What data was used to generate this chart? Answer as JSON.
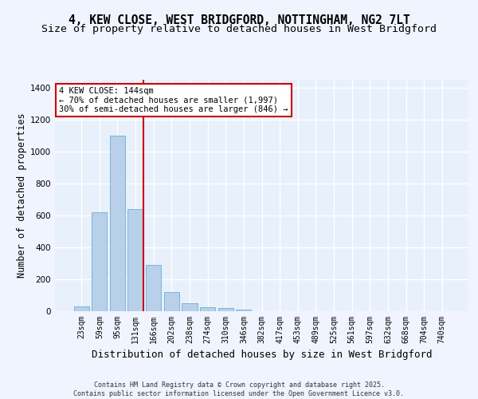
{
  "title_line1": "4, KEW CLOSE, WEST BRIDGFORD, NOTTINGHAM, NG2 7LT",
  "title_line2": "Size of property relative to detached houses in West Bridgford",
  "xlabel": "Distribution of detached houses by size in West Bridgford",
  "ylabel": "Number of detached properties",
  "categories": [
    "23sqm",
    "59sqm",
    "95sqm",
    "131sqm",
    "166sqm",
    "202sqm",
    "238sqm",
    "274sqm",
    "310sqm",
    "346sqm",
    "382sqm",
    "417sqm",
    "453sqm",
    "489sqm",
    "525sqm",
    "561sqm",
    "597sqm",
    "632sqm",
    "668sqm",
    "704sqm",
    "740sqm"
  ],
  "values": [
    30,
    620,
    1100,
    640,
    290,
    120,
    50,
    25,
    20,
    10,
    0,
    0,
    0,
    0,
    0,
    0,
    0,
    0,
    0,
    0,
    0
  ],
  "bar_color": "#b8d0ea",
  "bar_edge_color": "#6aaed6",
  "vline_color": "#cc0000",
  "vline_x": 3.43,
  "annotation_text": "4 KEW CLOSE: 144sqm\n← 70% of detached houses are smaller (1,997)\n30% of semi-detached houses are larger (846) →",
  "annotation_box_color": "#cc0000",
  "ylim": [
    0,
    1450
  ],
  "yticks": [
    0,
    200,
    400,
    600,
    800,
    1000,
    1200,
    1400
  ],
  "bg_color": "#e8f0fb",
  "grid_color": "#ffffff",
  "fig_bg_color": "#f0f4ff",
  "footer_text": "Contains HM Land Registry data © Crown copyright and database right 2025.\nContains public sector information licensed under the Open Government Licence v3.0.",
  "title_fontsize": 10.5,
  "subtitle_fontsize": 9.5,
  "axis_label_fontsize": 8.5,
  "tick_fontsize": 7,
  "annotation_fontsize": 7.5,
  "footer_fontsize": 6
}
